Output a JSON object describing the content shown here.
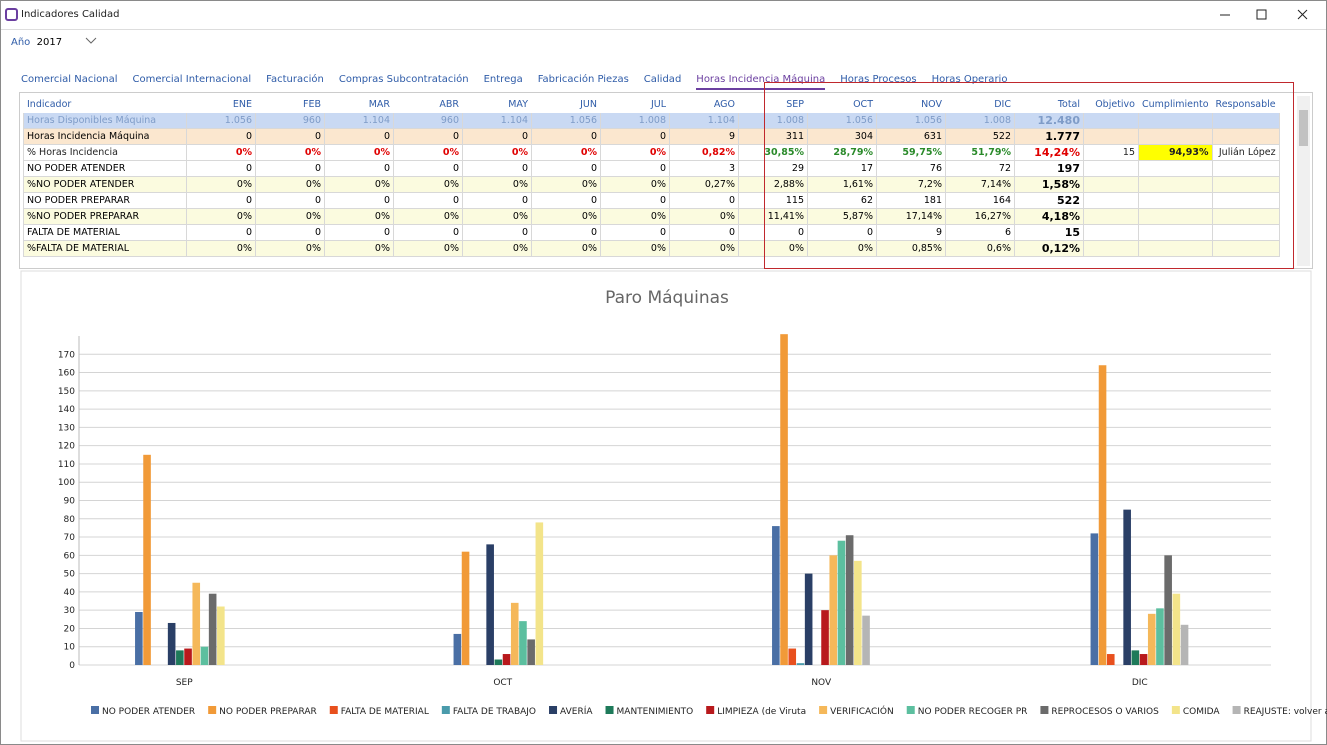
{
  "window": {
    "title": "Indicadores Calidad"
  },
  "filter": {
    "label": "Año",
    "value": "2017"
  },
  "tabs": [
    {
      "label": "Comercial Nacional"
    },
    {
      "label": "Comercial Internacional"
    },
    {
      "label": "Facturación"
    },
    {
      "label": "Compras Subcontratación"
    },
    {
      "label": "Entrega"
    },
    {
      "label": "Fabricación Piezas"
    },
    {
      "label": "Calidad"
    },
    {
      "label": "Horas Incidencia Máquina",
      "active": true
    },
    {
      "label": "Horas Procesos"
    },
    {
      "label": "Horas Operario"
    }
  ],
  "table": {
    "columns": [
      "Indicador",
      "ENE",
      "FEB",
      "MAR",
      "ABR",
      "MAY",
      "JUN",
      "JUL",
      "AGO",
      "SEP",
      "OCT",
      "NOV",
      "DIC",
      "Total",
      "Objetivo",
      "Cumplimiento",
      "Responsable"
    ],
    "rows": [
      [
        "Horas Disponibles Máquina",
        "1.056",
        "960",
        "1.104",
        "960",
        "1.104",
        "1.056",
        "1.008",
        "1.104",
        "1.008",
        "1.056",
        "1.056",
        "1.008",
        "12.480",
        null,
        null,
        null
      ],
      [
        "Horas Incidencia Máquina",
        "0",
        "0",
        "0",
        "0",
        "0",
        "0",
        "0",
        "9",
        "311",
        "304",
        "631",
        "522",
        "1.777",
        null,
        null,
        null
      ],
      [
        "% Horas Incidencia",
        "0%",
        "0%",
        "0%",
        "0%",
        "0%",
        "0%",
        "0%",
        "0,82%",
        "30,85%",
        "28,79%",
        "59,75%",
        "51,79%",
        "14,24%",
        "15",
        "94,93%",
        "Julián López"
      ],
      [
        "NO PODER ATENDER",
        "0",
        "0",
        "0",
        "0",
        "0",
        "0",
        "0",
        "3",
        "29",
        "17",
        "76",
        "72",
        "197",
        null,
        null,
        null
      ],
      [
        "%NO PODER ATENDER",
        "0%",
        "0%",
        "0%",
        "0%",
        "0%",
        "0%",
        "0%",
        "0,27%",
        "2,88%",
        "1,61%",
        "7,2%",
        "7,14%",
        "1,58%",
        null,
        null,
        null
      ],
      [
        "NO PODER PREPARAR",
        "0",
        "0",
        "0",
        "0",
        "0",
        "0",
        "0",
        "0",
        "115",
        "62",
        "181",
        "164",
        "522",
        null,
        null,
        null
      ],
      [
        "%NO PODER PREPARAR",
        "0%",
        "0%",
        "0%",
        "0%",
        "0%",
        "0%",
        "0%",
        "0%",
        "11,41%",
        "5,87%",
        "17,14%",
        "16,27%",
        "4,18%",
        null,
        null,
        null
      ],
      [
        "FALTA DE MATERIAL",
        "0",
        "0",
        "0",
        "0",
        "0",
        "0",
        "0",
        "0",
        "0",
        "0",
        "9",
        "6",
        "15",
        null,
        null,
        null
      ],
      [
        "%FALTA DE MATERIAL",
        "0%",
        "0%",
        "0%",
        "0%",
        "0%",
        "0%",
        "0%",
        "0%",
        "0%",
        "0%",
        "0,85%",
        "0,6%",
        "0,12%",
        null,
        null,
        null
      ]
    ]
  },
  "chart_data": {
    "type": "bar",
    "title": "Paro Máquinas",
    "categories": [
      "SEP",
      "OCT",
      "NOV",
      "DIC"
    ],
    "ylim": [
      0,
      180
    ],
    "yticks": [
      0,
      10,
      20,
      30,
      40,
      50,
      60,
      70,
      80,
      90,
      100,
      110,
      120,
      130,
      140,
      150,
      160,
      170
    ],
    "grid": true,
    "legend": "bottom",
    "series": [
      {
        "name": "NO PODER ATENDER",
        "color": "#4a6fa5",
        "values": [
          29,
          17,
          76,
          72
        ]
      },
      {
        "name": "NO PODER PREPARAR",
        "color": "#f19a38",
        "values": [
          115,
          62,
          181,
          164
        ]
      },
      {
        "name": "FALTA DE MATERIAL",
        "color": "#e8501e",
        "values": [
          0,
          0,
          9,
          6
        ]
      },
      {
        "name": "FALTA DE TRABAJO",
        "color": "#4a9bab",
        "values": [
          0,
          0,
          1,
          0
        ]
      },
      {
        "name": "AVERÍA",
        "color": "#2a3f66",
        "values": [
          23,
          66,
          50,
          85
        ]
      },
      {
        "name": "MANTENIMIENTO",
        "color": "#1e7a5a",
        "values": [
          8,
          3,
          0,
          8
        ]
      },
      {
        "name": "LIMPIEZA (de Viruta",
        "color": "#b8191c",
        "values": [
          9,
          6,
          30,
          6
        ]
      },
      {
        "name": "VERIFICACIÓN",
        "color": "#f5b85a",
        "values": [
          45,
          34,
          60,
          28
        ]
      },
      {
        "name": "NO PODER RECOGER PR",
        "color": "#5cbf9f",
        "values": [
          10,
          24,
          68,
          31
        ]
      },
      {
        "name": "REPROCESOS O VARIOS",
        "color": "#6b6b6b",
        "values": [
          39,
          14,
          71,
          60
        ]
      },
      {
        "name": "COMIDA",
        "color": "#f3e48a",
        "values": [
          32,
          78,
          57,
          39
        ]
      },
      {
        "name": "REAJUSTE: volver a",
        "color": "#b5b5b5",
        "values": [
          0,
          0,
          27,
          22
        ]
      }
    ]
  }
}
